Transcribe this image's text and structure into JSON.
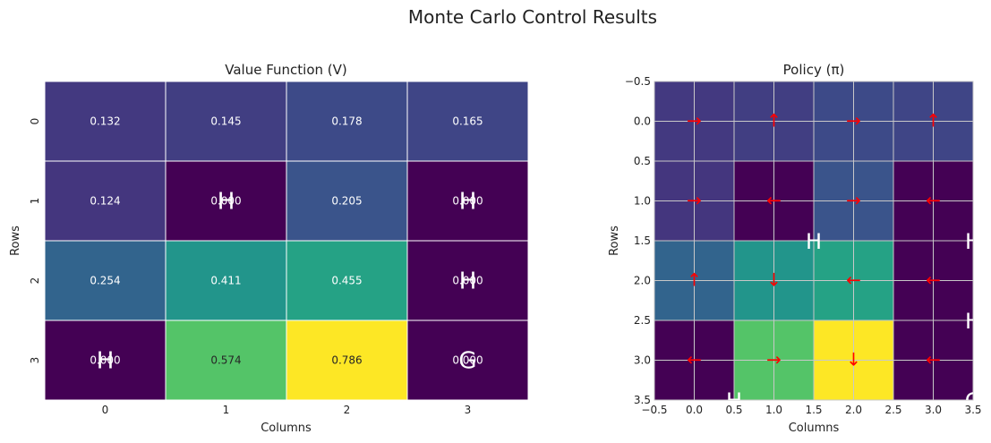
{
  "figure": {
    "title": "Monte Carlo Control Results"
  },
  "chart_data": [
    {
      "type": "heatmap",
      "title": "Value Function (V)",
      "xlabel": "Columns",
      "ylabel": "Rows",
      "x_ticks": [
        "0",
        "1",
        "2",
        "3"
      ],
      "y_ticks": [
        "0",
        "1",
        "2",
        "3"
      ],
      "colormap": "viridis",
      "vmin": 0,
      "vmax": 0.786,
      "values": [
        [
          0.132,
          0.145,
          0.178,
          0.165
        ],
        [
          0.124,
          0.0,
          0.205,
          0.0
        ],
        [
          0.254,
          0.411,
          0.455,
          0.0
        ],
        [
          0.0,
          0.574,
          0.786,
          0.0
        ]
      ],
      "cell_labels": [
        [
          "0.132",
          "0.145",
          "0.178",
          "0.165"
        ],
        [
          "0.124",
          "0.000",
          "0.205",
          "0.000"
        ],
        [
          "0.254",
          "0.411",
          "0.455",
          "0.000"
        ],
        [
          "0.000",
          "0.574",
          "0.786",
          "0.000"
        ]
      ],
      "markers": [
        {
          "row": 1,
          "col": 1,
          "text": "H"
        },
        {
          "row": 1,
          "col": 3,
          "text": "H"
        },
        {
          "row": 2,
          "col": 3,
          "text": "H"
        },
        {
          "row": 3,
          "col": 0,
          "text": "H"
        },
        {
          "row": 3,
          "col": 3,
          "text": "G"
        }
      ]
    },
    {
      "type": "heatmap",
      "title": "Policy (π)",
      "xlabel": "Columns",
      "ylabel": "Rows",
      "xlim": [
        -0.5,
        3.5
      ],
      "ylim": [
        3.5,
        -0.5
      ],
      "x_ticks": [
        -0.5,
        0.0,
        0.5,
        1.0,
        1.5,
        2.0,
        2.5,
        3.0,
        3.5
      ],
      "x_tick_labels": [
        "−0.5",
        "0.0",
        "0.5",
        "1.0",
        "1.5",
        "2.0",
        "2.5",
        "3.0",
        "3.5"
      ],
      "y_ticks": [
        -0.5,
        0.0,
        0.5,
        1.0,
        1.5,
        2.0,
        2.5,
        3.0,
        3.5
      ],
      "y_tick_labels": [
        "−0.5",
        "0.0",
        "0.5",
        "1.0",
        "1.5",
        "2.0",
        "2.5",
        "3.0",
        "3.5"
      ],
      "grid": true,
      "arrow_color": "#ff0000",
      "policy": [
        [
          "→",
          "↑",
          "→",
          "↑"
        ],
        [
          "→",
          "←",
          "→",
          "←"
        ],
        [
          "↑",
          "↓",
          "←",
          "←"
        ],
        [
          "←",
          "→",
          "↓",
          "←"
        ]
      ],
      "markers": [
        {
          "x": 1.5,
          "y": 1.5,
          "text": "H"
        },
        {
          "x": 3.5,
          "y": 1.5,
          "text": "H"
        },
        {
          "x": 3.5,
          "y": 2.5,
          "text": "H"
        },
        {
          "x": 0.5,
          "y": 3.5,
          "text": "H"
        },
        {
          "x": 3.5,
          "y": 3.5,
          "text": "G"
        }
      ]
    }
  ]
}
